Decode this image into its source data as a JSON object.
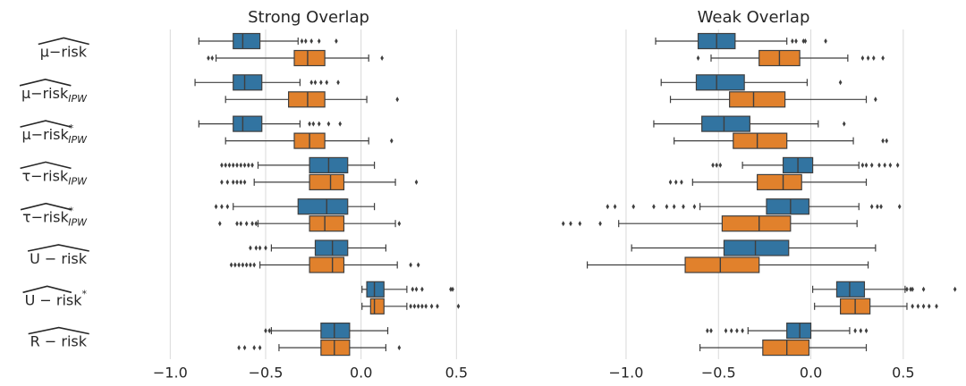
{
  "chart_data": [
    {
      "type": "box",
      "title": "Strong Overlap",
      "categories": [
        {
          "text": "μ−risk"
        },
        {
          "text": "μ−risk",
          "sub": "IPW"
        },
        {
          "text": "μ−risk",
          "sup": "*",
          "sub": "IPW"
        },
        {
          "text": "τ−risk",
          "sub": "IPW"
        },
        {
          "text": "τ−risk",
          "sup": "*",
          "sub": "IPW"
        },
        {
          "text": "U − risk"
        },
        {
          "text": "U − risk",
          "sup": "*"
        },
        {
          "text": "R − risk"
        }
      ],
      "xlim": [
        -1.4,
        0.85
      ],
      "xticks": [
        {
          "value": -1,
          "label": "−1.0"
        },
        {
          "value": -0.5,
          "label": "−0.5"
        },
        {
          "value": 0,
          "label": "0.0"
        },
        0.5
      ],
      "grid": true,
      "series": [
        {
          "color": "#3274a1",
          "boxes": [
            {
              "whislo": -0.85,
              "q1": -0.67,
              "med": -0.62,
              "q3": -0.53,
              "whishi": -0.33,
              "fliers": [
                -0.31,
                -0.29,
                -0.26,
                -0.22,
                -0.13
              ]
            },
            {
              "whislo": -0.87,
              "q1": -0.67,
              "med": -0.61,
              "q3": -0.52,
              "whishi": -0.32,
              "fliers": [
                -0.26,
                -0.24,
                -0.21,
                -0.18,
                -0.12
              ]
            },
            {
              "whislo": -0.85,
              "q1": -0.67,
              "med": -0.62,
              "q3": -0.52,
              "whishi": -0.32,
              "fliers": [
                -0.27,
                -0.25,
                -0.22,
                -0.17,
                -0.11
              ]
            },
            {
              "whislo": -0.54,
              "q1": -0.27,
              "med": -0.17,
              "q3": -0.07,
              "whishi": 0.07,
              "fliers": [
                -0.73,
                -0.71,
                -0.69,
                -0.67,
                -0.65,
                -0.63,
                -0.61,
                -0.59,
                -0.57
              ]
            },
            {
              "whislo": -0.67,
              "q1": -0.33,
              "med": -0.18,
              "q3": -0.07,
              "whishi": 0.07,
              "fliers": [
                -0.76,
                -0.73,
                -0.7
              ]
            },
            {
              "whislo": -0.47,
              "q1": -0.24,
              "med": -0.15,
              "q3": -0.07,
              "whishi": 0.13,
              "fliers": [
                -0.58,
                -0.55,
                -0.53,
                -0.5
              ]
            },
            {
              "whislo": 0.005,
              "q1": 0.03,
              "med": 0.07,
              "q3": 0.12,
              "whishi": 0.24,
              "fliers": [
                0.27,
                0.29,
                0.32,
                0.47,
                0.48
              ]
            },
            {
              "whislo": -0.47,
              "q1": -0.21,
              "med": -0.14,
              "q3": -0.06,
              "whishi": 0.14,
              "fliers": [
                -0.5,
                -0.48
              ]
            }
          ]
        },
        {
          "color": "#e1812c",
          "boxes": [
            {
              "whislo": -0.76,
              "q1": -0.35,
              "med": -0.28,
              "q3": -0.19,
              "whishi": 0.04,
              "fliers": [
                -0.8,
                -0.78,
                0.11
              ]
            },
            {
              "whislo": -0.71,
              "q1": -0.38,
              "med": -0.28,
              "q3": -0.19,
              "whishi": 0.03,
              "fliers": [
                0.19
              ]
            },
            {
              "whislo": -0.71,
              "q1": -0.35,
              "med": -0.27,
              "q3": -0.19,
              "whishi": 0.04,
              "fliers": [
                0.16
              ]
            },
            {
              "whislo": -0.56,
              "q1": -0.27,
              "med": -0.16,
              "q3": -0.09,
              "whishi": 0.18,
              "fliers": [
                -0.73,
                -0.7,
                -0.67,
                -0.65,
                -0.63,
                -0.61,
                0.29
              ]
            },
            {
              "whislo": -0.54,
              "q1": -0.27,
              "med": -0.19,
              "q3": -0.09,
              "whishi": 0.18,
              "fliers": [
                -0.74,
                -0.65,
                -0.63,
                -0.6,
                -0.57,
                -0.55,
                0.2
              ]
            },
            {
              "whislo": -0.53,
              "q1": -0.27,
              "med": -0.15,
              "q3": -0.09,
              "whishi": 0.19,
              "fliers": [
                -0.68,
                -0.66,
                -0.64,
                -0.62,
                -0.6,
                -0.58,
                -0.56,
                0.26,
                0.3
              ]
            },
            {
              "whislo": 0.005,
              "q1": 0.05,
              "med": 0.07,
              "q3": 0.12,
              "whishi": 0.24,
              "fliers": [
                0.26,
                0.28,
                0.3,
                0.32,
                0.34,
                0.37,
                0.4,
                0.51
              ]
            },
            {
              "whislo": -0.43,
              "q1": -0.21,
              "med": -0.14,
              "q3": -0.06,
              "whishi": 0.13,
              "fliers": [
                -0.64,
                -0.61,
                -0.56,
                -0.53,
                0.2
              ]
            }
          ]
        }
      ]
    },
    {
      "type": "box",
      "title": "Weak Overlap",
      "xlim": [
        -1.45,
        0.83
      ],
      "xticks": [
        {
          "value": -1,
          "label": "−1.0"
        },
        {
          "value": -0.5,
          "label": "−0.5"
        },
        {
          "value": 0,
          "label": "0.0"
        },
        0.5
      ],
      "grid": true,
      "series": [
        {
          "color": "#3274a1",
          "boxes": [
            {
              "whislo": -0.84,
              "q1": -0.61,
              "med": -0.51,
              "q3": -0.41,
              "whishi": -0.13,
              "fliers": [
                -0.1,
                -0.08,
                -0.04,
                -0.03,
                0.08
              ]
            },
            {
              "whislo": -0.81,
              "q1": -0.62,
              "med": -0.51,
              "q3": -0.36,
              "whishi": -0.02,
              "fliers": [
                0.16
              ]
            },
            {
              "whislo": -0.85,
              "q1": -0.59,
              "med": -0.47,
              "q3": -0.33,
              "whishi": 0.04,
              "fliers": [
                0.18
              ]
            },
            {
              "whislo": -0.37,
              "q1": -0.15,
              "med": -0.07,
              "q3": 0.01,
              "whishi": 0.26,
              "fliers": [
                -0.53,
                -0.51,
                -0.49,
                0.28,
                0.3,
                0.33,
                0.37,
                0.4,
                0.43,
                0.47
              ]
            },
            {
              "whislo": -0.6,
              "q1": -0.24,
              "med": -0.11,
              "q3": -0.01,
              "whishi": 0.26,
              "fliers": [
                -1.1,
                -1.06,
                -0.96,
                -0.85,
                -0.78,
                -0.74,
                -0.69,
                -0.63,
                0.33,
                0.36,
                0.38,
                0.48
              ]
            },
            {
              "whislo": -0.97,
              "q1": -0.47,
              "med": -0.3,
              "q3": -0.12,
              "whishi": 0.35,
              "fliers": []
            },
            {
              "whislo": 0.01,
              "q1": 0.14,
              "med": 0.21,
              "q3": 0.29,
              "whishi": 0.51,
              "fliers": [
                0.52,
                0.54,
                0.55,
                0.61,
                0.78
              ]
            },
            {
              "whislo": -0.34,
              "q1": -0.13,
              "med": -0.06,
              "q3": 0.0,
              "whishi": 0.21,
              "fliers": [
                -0.56,
                -0.54,
                -0.46,
                -0.43,
                -0.4,
                -0.37,
                0.24,
                0.27,
                0.3
              ]
            }
          ]
        },
        {
          "color": "#e1812c",
          "boxes": [
            {
              "whislo": -0.54,
              "q1": -0.28,
              "med": -0.17,
              "q3": -0.06,
              "whishi": 0.2,
              "fliers": [
                -0.61,
                0.28,
                0.31,
                0.34,
                0.39
              ]
            },
            {
              "whislo": -0.76,
              "q1": -0.44,
              "med": -0.31,
              "q3": -0.14,
              "whishi": 0.3,
              "fliers": [
                0.35
              ]
            },
            {
              "whislo": -0.74,
              "q1": -0.42,
              "med": -0.29,
              "q3": -0.13,
              "whishi": 0.23,
              "fliers": [
                0.39,
                0.41
              ]
            },
            {
              "whislo": -0.64,
              "q1": -0.29,
              "med": -0.15,
              "q3": -0.05,
              "whishi": 0.3,
              "fliers": [
                -0.76,
                -0.73,
                -0.7
              ]
            },
            {
              "whislo": -1.04,
              "q1": -0.48,
              "med": -0.28,
              "q3": -0.11,
              "whishi": 0.25,
              "fliers": [
                -1.34,
                -1.3,
                -1.25,
                -1.14
              ]
            },
            {
              "whislo": -1.21,
              "q1": -0.68,
              "med": -0.49,
              "q3": -0.28,
              "whishi": 0.31,
              "fliers": []
            },
            {
              "whislo": 0.02,
              "q1": 0.16,
              "med": 0.24,
              "q3": 0.32,
              "whishi": 0.52,
              "fliers": [
                0.55,
                0.58,
                0.61,
                0.64,
                0.68
              ]
            },
            {
              "whislo": -0.6,
              "q1": -0.26,
              "med": -0.13,
              "q3": -0.01,
              "whishi": 0.3,
              "fliers": []
            }
          ]
        }
      ]
    }
  ]
}
